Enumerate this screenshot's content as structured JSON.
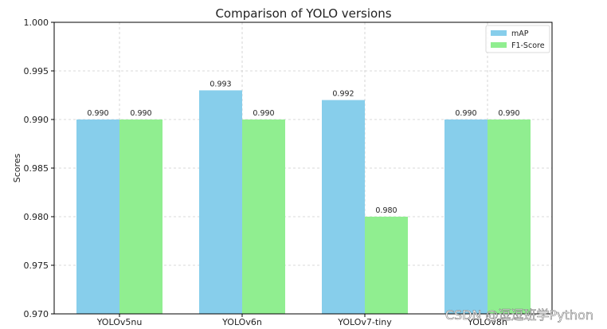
{
  "chart_data": {
    "type": "bar",
    "title": "Comparison of YOLO versions",
    "xlabel": "",
    "ylabel": "Scores",
    "categories": [
      "YOLOv5nu",
      "YOLOv6n",
      "YOLOv7-tiny",
      "YOLOv8n"
    ],
    "series": [
      {
        "name": "mAP",
        "values": [
          0.99,
          0.993,
          0.992,
          0.99
        ],
        "color": "#87ceeb"
      },
      {
        "name": "F1-Score",
        "values": [
          0.99,
          0.99,
          0.98,
          0.99
        ],
        "color": "#90ee90"
      }
    ],
    "ylim": [
      0.97,
      1.0
    ],
    "yticks": [
      0.97,
      0.975,
      0.98,
      0.985,
      0.99,
      0.995,
      1.0
    ],
    "grid": true,
    "legend_position": "top-right"
  },
  "watermark": "CSDN @逗逗班学Python"
}
